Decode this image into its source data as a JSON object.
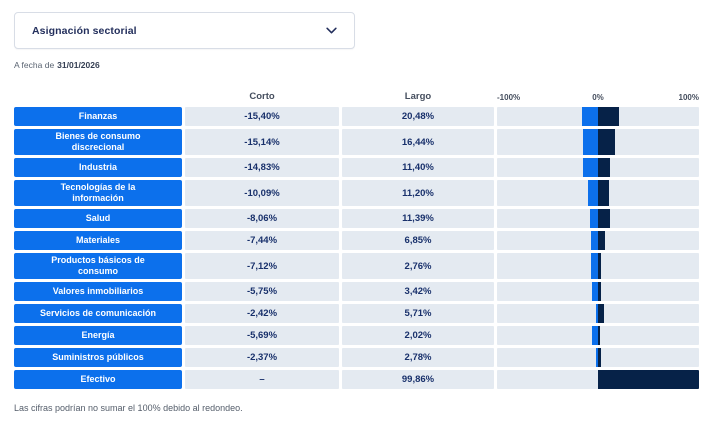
{
  "dropdown": {
    "label": "Asignación sectorial"
  },
  "date": {
    "prefix": "A fecha de",
    "value": "31/01/2026"
  },
  "table": {
    "columns": {
      "short": "Corto",
      "long": "Largo"
    }
  },
  "chart_data": {
    "type": "bar",
    "orientation": "horizontal-diverging",
    "title": "Asignación sectorial",
    "xlim": [
      -100,
      100
    ],
    "ticks": [
      "-100%",
      "0%",
      "100%"
    ],
    "legend": "none",
    "categories": [
      [
        "Finanzas"
      ],
      [
        "Bienes de consumo",
        "discrecional"
      ],
      [
        "Industria"
      ],
      [
        "Tecnologías de la",
        "información"
      ],
      [
        "Salud"
      ],
      [
        "Materiales"
      ],
      [
        "Productos básicos de",
        "consumo"
      ],
      [
        "Valores inmobiliarios"
      ],
      [
        "Servicios de comunicación"
      ],
      [
        "Energía"
      ],
      [
        "Suministros públicos"
      ],
      [
        "Efectivo"
      ]
    ],
    "series": [
      {
        "name": "Corto",
        "color": "#0C70EC",
        "values": [
          -15.4,
          -15.14,
          -14.83,
          -10.09,
          -8.06,
          -7.44,
          -7.12,
          -5.75,
          -2.42,
          -5.69,
          -2.37,
          null
        ]
      },
      {
        "name": "Largo",
        "color": "#062248",
        "values": [
          20.48,
          16.44,
          11.4,
          11.2,
          11.39,
          6.85,
          2.76,
          3.42,
          5.71,
          2.02,
          2.78,
          99.86
        ]
      }
    ],
    "labels": {
      "corto": [
        "-15,40%",
        "-15,14%",
        "-14,83%",
        "-10,09%",
        "-8,06%",
        "-7,44%",
        "-7,12%",
        "-5,75%",
        "-2,42%",
        "-5,69%",
        "-2,37%",
        "–"
      ],
      "largo": [
        "20,48%",
        "16,44%",
        "11,40%",
        "11,20%",
        "11,39%",
        "6,85%",
        "2,76%",
        "3,42%",
        "5,71%",
        "2,02%",
        "2,78%",
        "99,86%"
      ]
    }
  },
  "footnote": "Las cifras podrían no sumar el 100% debido al redondeo.",
  "colors": {
    "blue": "#0C70EC",
    "navy": "#062248",
    "cellBg": "#E4EAF1",
    "headerText": "#454E5E",
    "valueText": "#18306B",
    "dropdownText": "#232F5C"
  }
}
